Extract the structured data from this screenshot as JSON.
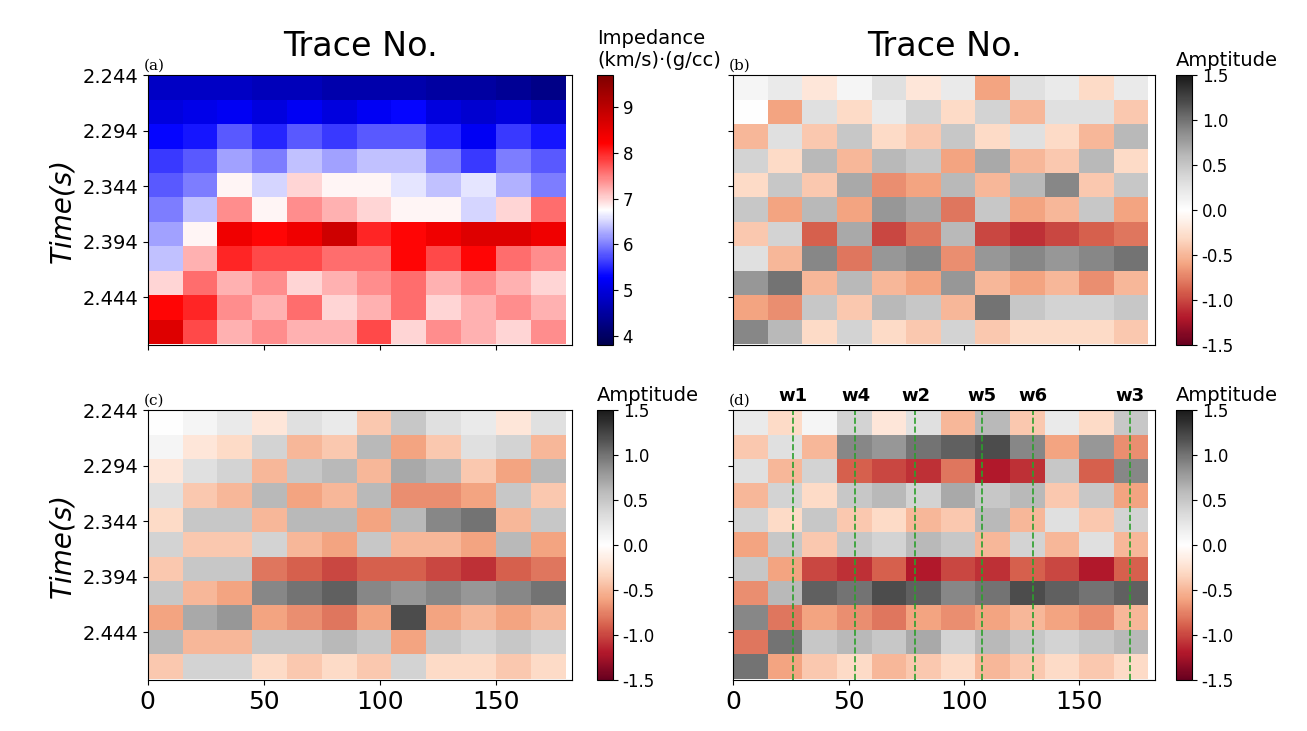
{
  "chart_data": [
    {
      "type": "heatmap",
      "label": "(a)",
      "title": "Trace No.",
      "ylabel": "Time(s)",
      "colorbar_label": "Impedance\n(km/s)·(g/cc)",
      "clim": [
        3.8,
        9.7
      ],
      "colorbar_ticks": [
        4,
        5,
        6,
        7,
        8,
        9
      ],
      "xlim": [
        0,
        183
      ],
      "ylim": [
        2.487,
        2.244
      ],
      "xticks": [
        0,
        50,
        100,
        150
      ],
      "yticks": [
        2.244,
        2.294,
        2.344,
        2.394,
        2.444
      ],
      "tick_labels": "y",
      "x": [
        7.5,
        22.5,
        37.5,
        52.5,
        67.5,
        82.5,
        97.5,
        112.5,
        127.5,
        142.5,
        157.5,
        172.5
      ],
      "y": [
        2.255,
        2.277,
        2.299,
        2.321,
        2.343,
        2.365,
        2.387,
        2.409,
        2.431,
        2.453,
        2.475
      ],
      "cells": [
        [
          4.8,
          4.8,
          4.8,
          4.7,
          4.7,
          4.6,
          4.6,
          4.6,
          4.5,
          4.5,
          4.4,
          4.3
        ],
        [
          5.0,
          5.1,
          5.2,
          5.0,
          5.2,
          5.0,
          5.2,
          5.3,
          5.0,
          4.9,
          5.0,
          4.8
        ],
        [
          5.3,
          5.4,
          5.8,
          5.5,
          5.8,
          5.6,
          5.8,
          5.8,
          5.5,
          5.2,
          5.6,
          5.4
        ],
        [
          5.6,
          5.8,
          6.2,
          6.0,
          6.4,
          6.2,
          6.4,
          6.4,
          6.0,
          5.6,
          6.0,
          5.8
        ],
        [
          5.8,
          6.0,
          6.8,
          6.5,
          7.0,
          6.8,
          6.8,
          6.6,
          6.4,
          6.6,
          6.3,
          6.0
        ],
        [
          6.0,
          6.4,
          7.4,
          6.8,
          7.4,
          7.2,
          7.0,
          6.8,
          6.8,
          6.5,
          7.0,
          7.6
        ],
        [
          6.2,
          6.8,
          8.4,
          8.2,
          8.4,
          8.8,
          8.0,
          8.2,
          8.4,
          8.6,
          8.6,
          8.4
        ],
        [
          6.4,
          7.2,
          8.0,
          7.8,
          7.8,
          7.6,
          7.6,
          8.2,
          7.8,
          8.2,
          7.6,
          7.4
        ],
        [
          7.0,
          7.6,
          7.2,
          7.4,
          7.0,
          7.2,
          7.4,
          7.6,
          7.2,
          7.4,
          7.2,
          7.0
        ],
        [
          8.2,
          8.0,
          7.4,
          7.2,
          7.6,
          7.0,
          7.2,
          7.6,
          7.0,
          7.2,
          7.4,
          7.2
        ],
        [
          8.6,
          7.8,
          7.2,
          7.4,
          7.2,
          7.2,
          7.8,
          7.0,
          7.4,
          7.2,
          7.0,
          7.4
        ]
      ]
    },
    {
      "type": "heatmap",
      "label": "(b)",
      "title": "Trace No.",
      "colorbar_label": "Amptitude",
      "clim": [
        -1.5,
        1.5
      ],
      "colorbar_ticks": [
        -1.5,
        -1.0,
        -0.5,
        0.0,
        0.5,
        1.0,
        1.5
      ],
      "xlim": [
        0,
        183
      ],
      "ylim": [
        2.487,
        2.244
      ],
      "xticks": [
        0,
        50,
        100,
        150
      ],
      "yticks": [
        2.244,
        2.294,
        2.344,
        2.394,
        2.444
      ],
      "tick_labels": false,
      "x": [
        7.5,
        22.5,
        37.5,
        52.5,
        67.5,
        82.5,
        97.5,
        112.5,
        127.5,
        142.5,
        157.5,
        172.5
      ],
      "y": [
        2.255,
        2.277,
        2.299,
        2.321,
        2.343,
        2.365,
        2.387,
        2.409,
        2.431,
        2.453,
        2.475
      ],
      "cells": [
        [
          0.1,
          0.2,
          -0.2,
          0.1,
          0.3,
          -0.2,
          0.2,
          -0.6,
          0.3,
          0.2,
          -0.3,
          0.2
        ],
        [
          0.0,
          -0.6,
          0.3,
          -0.3,
          0.2,
          0.4,
          -0.3,
          0.4,
          -0.5,
          0.3,
          0.3,
          -0.4
        ],
        [
          -0.5,
          0.3,
          -0.4,
          0.5,
          -0.3,
          -0.4,
          0.5,
          -0.3,
          0.3,
          -0.3,
          -0.5,
          0.6
        ],
        [
          0.4,
          -0.3,
          0.6,
          -0.5,
          0.6,
          0.5,
          -0.6,
          0.7,
          -0.5,
          -0.4,
          0.6,
          -0.3
        ],
        [
          -0.3,
          0.5,
          -0.4,
          0.7,
          -0.7,
          -0.6,
          0.6,
          -0.5,
          0.6,
          0.9,
          -0.4,
          0.5
        ],
        [
          0.5,
          -0.6,
          0.6,
          -0.6,
          0.8,
          0.7,
          -0.8,
          0.5,
          -0.6,
          -0.5,
          0.5,
          -0.6
        ],
        [
          -0.4,
          0.4,
          -0.9,
          0.7,
          -1.0,
          -0.8,
          0.6,
          -1.0,
          -1.1,
          -1.0,
          -0.9,
          -0.8
        ],
        [
          0.3,
          -0.5,
          0.9,
          -0.8,
          0.8,
          0.9,
          -0.7,
          0.8,
          0.9,
          0.8,
          0.9,
          1.0
        ],
        [
          0.8,
          1.0,
          -0.5,
          0.6,
          -0.5,
          -0.6,
          0.8,
          -0.5,
          -0.6,
          -0.5,
          -0.7,
          -0.5
        ],
        [
          -0.6,
          -0.7,
          0.5,
          -0.4,
          0.6,
          0.5,
          -0.5,
          1.0,
          0.5,
          0.4,
          0.4,
          0.5
        ],
        [
          0.9,
          0.6,
          -0.3,
          0.4,
          -0.3,
          -0.4,
          0.4,
          -0.4,
          -0.3,
          -0.3,
          -0.3,
          -0.4
        ]
      ]
    },
    {
      "type": "heatmap",
      "label": "(c)",
      "ylabel": "Time(s)",
      "colorbar_label": "Amptitude",
      "clim": [
        -1.5,
        1.5
      ],
      "colorbar_ticks": [
        -1.5,
        -1.0,
        -0.5,
        0.0,
        0.5,
        1.0,
        1.5
      ],
      "xlim": [
        0,
        183
      ],
      "ylim": [
        2.487,
        2.244
      ],
      "xticks": [
        0,
        50,
        100,
        150
      ],
      "yticks": [
        2.244,
        2.294,
        2.344,
        2.394,
        2.444
      ],
      "x": [
        7.5,
        22.5,
        37.5,
        52.5,
        67.5,
        82.5,
        97.5,
        112.5,
        127.5,
        142.5,
        157.5,
        172.5
      ],
      "y": [
        2.255,
        2.277,
        2.299,
        2.321,
        2.343,
        2.365,
        2.387,
        2.409,
        2.431,
        2.453,
        2.475
      ],
      "cells": [
        [
          0.0,
          0.1,
          0.2,
          -0.2,
          0.3,
          0.2,
          -0.4,
          0.5,
          0.3,
          0.2,
          -0.2,
          0.3
        ],
        [
          0.1,
          -0.2,
          -0.3,
          0.4,
          -0.5,
          -0.4,
          0.6,
          -0.6,
          -0.4,
          0.3,
          0.4,
          -0.5
        ],
        [
          -0.2,
          0.3,
          0.4,
          -0.5,
          0.5,
          0.6,
          -0.5,
          0.7,
          0.6,
          -0.4,
          -0.6,
          0.6
        ],
        [
          0.3,
          -0.4,
          -0.5,
          0.6,
          -0.6,
          -0.5,
          0.6,
          -0.7,
          -0.7,
          -0.6,
          0.5,
          -0.4
        ],
        [
          -0.3,
          0.5,
          0.5,
          -0.5,
          0.6,
          0.6,
          -0.6,
          0.6,
          0.9,
          1.0,
          -0.5,
          0.5
        ],
        [
          0.4,
          -0.4,
          -0.4,
          0.4,
          -0.5,
          -0.6,
          0.5,
          -0.5,
          -0.5,
          -0.6,
          0.6,
          -0.6
        ],
        [
          -0.4,
          0.5,
          0.5,
          -0.8,
          -0.9,
          -1.0,
          -0.9,
          -0.9,
          -1.0,
          -1.1,
          -0.9,
          -0.8
        ],
        [
          0.5,
          -0.5,
          -0.6,
          0.9,
          1.0,
          1.1,
          0.9,
          0.8,
          0.9,
          0.8,
          0.9,
          1.0
        ],
        [
          -0.6,
          0.7,
          0.8,
          -0.6,
          -0.7,
          -0.8,
          -0.6,
          1.2,
          -0.6,
          -0.5,
          -0.6,
          -0.5
        ],
        [
          0.6,
          -0.5,
          -0.5,
          0.5,
          0.5,
          0.6,
          0.5,
          -0.6,
          0.5,
          0.4,
          0.5,
          0.4
        ],
        [
          -0.4,
          0.4,
          0.4,
          -0.3,
          -0.4,
          -0.3,
          -0.4,
          0.4,
          -0.3,
          -0.3,
          -0.4,
          -0.3
        ]
      ]
    },
    {
      "type": "heatmap",
      "label": "(d)",
      "colorbar_label": "Amptitude",
      "clim": [
        -1.5,
        1.5
      ],
      "colorbar_ticks": [
        -1.5,
        -1.0,
        -0.5,
        0.0,
        0.5,
        1.0,
        1.5
      ],
      "xlim": [
        0,
        183
      ],
      "ylim": [
        2.487,
        2.244
      ],
      "xticks": [
        0,
        50,
        100,
        150
      ],
      "yticks": [
        2.244,
        2.294,
        2.344,
        2.394,
        2.444
      ],
      "tick_labels": "x",
      "wells": [
        {
          "name": "w1",
          "trace": 26
        },
        {
          "name": "w4",
          "trace": 53
        },
        {
          "name": "w2",
          "trace": 79
        },
        {
          "name": "w5",
          "trace": 108
        },
        {
          "name": "w6",
          "trace": 130
        },
        {
          "name": "w3",
          "trace": 172
        }
      ],
      "well_color": "#2ca02c",
      "x": [
        7.5,
        22.5,
        37.5,
        52.5,
        67.5,
        82.5,
        97.5,
        112.5,
        127.5,
        142.5,
        157.5,
        172.5
      ],
      "y": [
        2.255,
        2.277,
        2.299,
        2.321,
        2.343,
        2.365,
        2.387,
        2.409,
        2.431,
        2.453,
        2.475
      ],
      "cells": [
        [
          0.2,
          -0.3,
          0.1,
          0.4,
          -0.2,
          0.3,
          -0.5,
          0.6,
          -0.4,
          0.2,
          -0.3,
          0.5
        ],
        [
          -0.4,
          0.3,
          -0.5,
          0.9,
          0.8,
          1.0,
          1.1,
          1.2,
          0.9,
          -0.6,
          0.8,
          -0.7
        ],
        [
          0.3,
          -0.5,
          0.4,
          -0.9,
          -1.0,
          -1.1,
          -0.8,
          -1.2,
          -1.1,
          0.5,
          -0.9,
          0.9
        ],
        [
          -0.5,
          0.4,
          -0.3,
          0.5,
          0.6,
          0.4,
          0.7,
          0.5,
          0.6,
          -0.4,
          0.5,
          -0.6
        ],
        [
          0.4,
          -0.3,
          0.5,
          -0.4,
          -0.3,
          -0.5,
          -0.4,
          0.6,
          -0.5,
          0.3,
          -0.4,
          0.4
        ],
        [
          -0.6,
          0.5,
          -0.4,
          0.5,
          0.4,
          0.6,
          0.5,
          -0.5,
          0.4,
          -0.5,
          0.3,
          -0.5
        ],
        [
          0.5,
          -0.6,
          -1.0,
          -1.1,
          -0.9,
          -1.2,
          -1.0,
          -1.1,
          -0.9,
          -1.0,
          -1.2,
          -0.9
        ],
        [
          -0.7,
          0.6,
          1.1,
          1.0,
          1.2,
          1.1,
          0.9,
          1.0,
          1.2,
          1.1,
          1.0,
          1.1
        ],
        [
          0.9,
          -0.8,
          -0.6,
          -0.7,
          -0.8,
          -0.6,
          -0.7,
          -0.6,
          -0.5,
          -0.6,
          -0.7,
          -0.5
        ],
        [
          -0.8,
          1.0,
          0.5,
          0.6,
          0.5,
          0.7,
          0.4,
          0.6,
          0.5,
          0.4,
          0.5,
          0.6
        ],
        [
          1.0,
          -0.6,
          -0.4,
          -0.3,
          -0.5,
          -0.4,
          -0.3,
          -0.5,
          -0.4,
          -0.3,
          -0.4,
          -0.3
        ]
      ]
    }
  ]
}
